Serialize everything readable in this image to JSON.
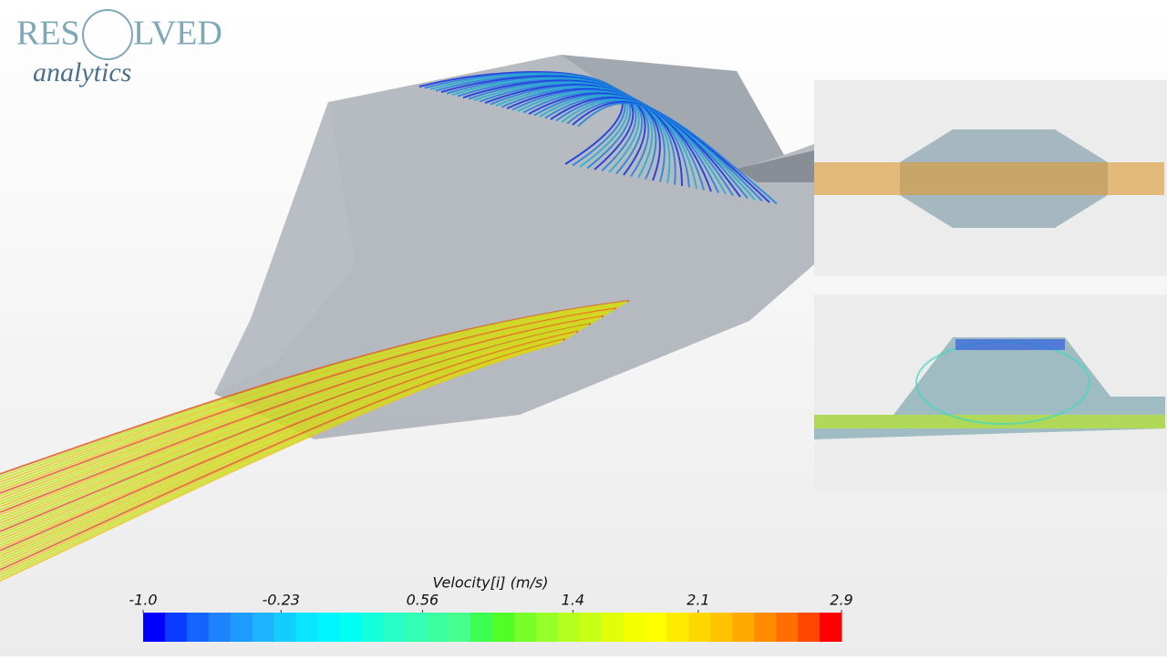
{
  "logo": {
    "left": "RES",
    "right": "LVED",
    "sub": "analytics"
  },
  "colorbar": {
    "title": "Velocity[i] (m/s)",
    "lim": [
      -1,
      2.9
    ],
    "ticks": [
      {
        "value": -1,
        "label": "-1.0"
      },
      -0.23,
      0.56,
      1.4,
      2.1,
      2.9
    ],
    "colors": [
      "#0000ff",
      "#0a3cff",
      "#1464ff",
      "#1e82ff",
      "#1e9bff",
      "#1eb4ff",
      "#14cdff",
      "#0ae6ff",
      "#00f5ff",
      "#00fff0",
      "#14ffdc",
      "#28ffc8",
      "#32ffb4",
      "#3cffa0",
      "#46ff8c",
      "#3cff50",
      "#50ff28",
      "#78ff28",
      "#96ff28",
      "#b4ff1e",
      "#c8ff14",
      "#e1ff0a",
      "#f5ff00",
      "#ffff00",
      "#ffeb00",
      "#ffd700",
      "#ffc300",
      "#ffaa00",
      "#ff8c00",
      "#ff6e00",
      "#ff4600",
      "#ff0000"
    ]
  }
}
